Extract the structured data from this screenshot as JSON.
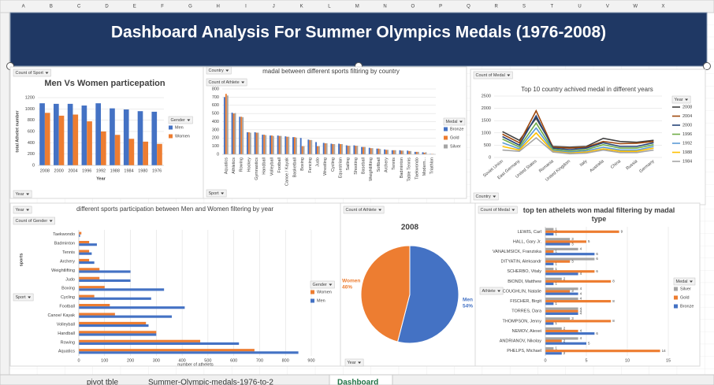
{
  "spreadsheet": {
    "columns": [
      "A",
      "B",
      "C",
      "D",
      "E",
      "F",
      "G",
      "H",
      "I",
      "J",
      "K",
      "L",
      "M",
      "N",
      "O",
      "P",
      "Q",
      "R",
      "S",
      "T",
      "U",
      "V",
      "W",
      "X"
    ],
    "tabs": [
      "pivot tble",
      "Summer-Olympic-medals-1976-to-2",
      "Dashboard"
    ]
  },
  "banner": {
    "title": "Dashboard Analysis For Summer Olympics Medals (1976-2008)"
  },
  "chart_data": [
    {
      "type": "bar",
      "title": "Men Vs Women particepation",
      "y_label": "total Athelet number",
      "x_label": "Year",
      "buttons": [
        "Count of Sport",
        "Year"
      ],
      "legend_title": "Gender",
      "grid": true,
      "categories": [
        "2008",
        "2000",
        "2004",
        "1996",
        "1992",
        "1988",
        "1984",
        "1980",
        "1976"
      ],
      "series": [
        {
          "name": "Men",
          "color": "#4472c4",
          "values": [
            1100,
            1090,
            1090,
            1060,
            1100,
            1010,
            990,
            960,
            950
          ]
        },
        {
          "name": "Women",
          "color": "#ed7d31",
          "values": [
            930,
            880,
            900,
            780,
            600,
            540,
            470,
            420,
            380
          ]
        }
      ],
      "ylim": [
        0,
        1200
      ],
      "yticks": [
        0,
        200,
        400,
        600,
        800,
        1000,
        1200
      ]
    },
    {
      "type": "bar",
      "title": "madal between different sports filtiring by country",
      "buttons": [
        "Country",
        "Count of Athlete",
        "Sport"
      ],
      "legend_title": "Medal",
      "grid": true,
      "categories": [
        "Aquatics",
        "Athletics",
        "Rowing",
        "Hockey",
        "Gymnastics",
        "Handball",
        "Volleyball",
        "Football",
        "Canoe / Kayak",
        "Basketball",
        "Boxing",
        "Fencing",
        "Judo",
        "Wrestling",
        "Cycling",
        "Equestrian",
        "Sailing",
        "Shooting",
        "Baseball",
        "Weightlifting",
        "Softball",
        "Archery",
        "Tennis",
        "Badminton",
        "Table Tennis",
        "Taekwondo",
        "Modern...",
        "Triathlon"
      ],
      "series": [
        {
          "name": "Bronze",
          "color": "#4472c4",
          "values": [
            700,
            510,
            460,
            270,
            270,
            240,
            230,
            230,
            220,
            210,
            200,
            180,
            150,
            140,
            130,
            130,
            110,
            110,
            90,
            80,
            70,
            60,
            50,
            50,
            45,
            30,
            25,
            5
          ]
        },
        {
          "name": "Gold",
          "color": "#ed7d31",
          "values": [
            740,
            500,
            460,
            270,
            265,
            240,
            230,
            225,
            215,
            210,
            100,
            175,
            100,
            135,
            125,
            125,
            105,
            105,
            90,
            75,
            70,
            55,
            50,
            45,
            40,
            30,
            20,
            5
          ]
        },
        {
          "name": "Silver",
          "color": "#a5a5a5",
          "values": [
            720,
            505,
            455,
            265,
            265,
            235,
            225,
            225,
            215,
            205,
            100,
            175,
            100,
            135,
            125,
            125,
            105,
            105,
            90,
            75,
            65,
            55,
            50,
            45,
            40,
            30,
            25,
            5
          ]
        }
      ],
      "ylim": [
        0,
        800
      ],
      "yticks": [
        0,
        100,
        200,
        300,
        400,
        500,
        600,
        700,
        800
      ]
    },
    {
      "type": "line",
      "title": "Top   10 country achived medal in different years",
      "buttons": [
        "Count of Medal",
        "Country"
      ],
      "legend_title": "Year",
      "grid": true,
      "categories": [
        "Soviet Union",
        "East Germany",
        "United States",
        "Romania",
        "United Kingdom",
        "Italy",
        "Australia",
        "China",
        "Russia",
        "Germany"
      ],
      "series": [
        {
          "name": "2008",
          "color": "#404040",
          "values": [
            1050,
            700,
            1600,
            450,
            420,
            450,
            780,
            650,
            620,
            700
          ]
        },
        {
          "name": "2004",
          "color": "#9e480e",
          "values": [
            950,
            600,
            1900,
            420,
            380,
            420,
            650,
            560,
            580,
            650
          ]
        },
        {
          "name": "2000",
          "color": "#264478",
          "values": [
            850,
            500,
            1700,
            380,
            320,
            380,
            600,
            450,
            450,
            600
          ]
        },
        {
          "name": "1996",
          "color": "#70ad47",
          "values": [
            750,
            420,
            1400,
            330,
            260,
            320,
            520,
            380,
            380,
            520
          ]
        },
        {
          "name": "1992",
          "color": "#5b9bd5",
          "values": [
            600,
            350,
            1200,
            280,
            220,
            270,
            420,
            300,
            300,
            450
          ]
        },
        {
          "name": "1988",
          "color": "#ffc000",
          "values": [
            450,
            300,
            1000,
            250,
            180,
            220,
            350,
            250,
            250,
            380
          ]
        },
        {
          "name": "1984",
          "color": "#a5a5a5",
          "values": [
            300,
            250,
            800,
            220,
            150,
            180,
            300,
            200,
            200,
            300
          ]
        }
      ],
      "ylim": [
        0,
        2500
      ],
      "yticks": [
        0,
        500,
        1000,
        1500,
        2000,
        2500
      ]
    },
    {
      "type": "bar",
      "orientation": "horizontal",
      "title": "different sports participation between Men and Women filtering by year",
      "y_label": "sports",
      "x_label": "number of athelets",
      "buttons": [
        "Year",
        "Count of Gender",
        "Sport"
      ],
      "legend_title": "Gender",
      "grid": true,
      "categories": [
        "Taekwondo",
        "Badminton",
        "Tennis",
        "Archery",
        "Weightlifting",
        "Judo",
        "Boxing",
        "Cycling",
        "Football",
        "Canoe/ Kayak",
        "Volleyball",
        "Handball",
        "Rowing",
        "Aquatics"
      ],
      "series": [
        {
          "name": "Women",
          "color": "#ed7d31",
          "values": [
            10,
            40,
            40,
            40,
            80,
            80,
            100,
            60,
            120,
            140,
            260,
            300,
            470,
            680
          ]
        },
        {
          "name": "Men",
          "color": "#4472c4",
          "values": [
            5,
            70,
            50,
            60,
            200,
            200,
            330,
            280,
            410,
            360,
            270,
            300,
            620,
            850
          ]
        }
      ],
      "xlim": [
        0,
        900
      ],
      "xticks": [
        0,
        100,
        200,
        300,
        400,
        500,
        600,
        700,
        800,
        900
      ]
    },
    {
      "type": "pie",
      "title": "2008",
      "buttons": [
        "Count of Athlete",
        "Year"
      ],
      "categories": [
        "Men",
        "Women"
      ],
      "values": [
        54,
        46
      ],
      "value_labels": [
        "54%",
        "46%"
      ],
      "colors": [
        "#4472c4",
        "#ed7d31"
      ]
    },
    {
      "type": "bar",
      "orientation": "horizontal",
      "title": "top ten athelets won madal filtering by madal type",
      "buttons": [
        "Count of Medal",
        "Athlete"
      ],
      "legend_title": "Medal",
      "grid": true,
      "categories": [
        "LEWIS, Carl",
        "HALL, Gary Jr.",
        "VANALMSICK, Franziska",
        "DITYATIN, Aleksandr",
        "SCHERBO, Vitaly",
        "BIONDI, Matthew",
        "COUGHLIN, Natalie",
        "FISCHER, Birgit",
        "TORRES, Dara",
        "THOMPSON, Jenny",
        "NEMOV, Alexei",
        "ANDRIANOV, Nikolay",
        "PHELPS, Michael"
      ],
      "series": [
        {
          "name": "Silver",
          "color": "#a5a5a5",
          "values": [
            1,
            3,
            4,
            6,
            1,
            2,
            4,
            4,
            4,
            3,
            2,
            4,
            1
          ]
        },
        {
          "name": "Gold",
          "color": "#ed7d31",
          "values": [
            9,
            5,
            1,
            3,
            6,
            8,
            3,
            8,
            4,
            8,
            4,
            2,
            14
          ]
        },
        {
          "name": "Bronze",
          "color": "#4472c4",
          "values": [
            1,
            3,
            6,
            1,
            4,
            1,
            4,
            1,
            4,
            1,
            6,
            5,
            2
          ]
        }
      ],
      "xlim": [
        0,
        15
      ],
      "xticks": [
        0,
        5,
        10,
        15
      ]
    }
  ]
}
